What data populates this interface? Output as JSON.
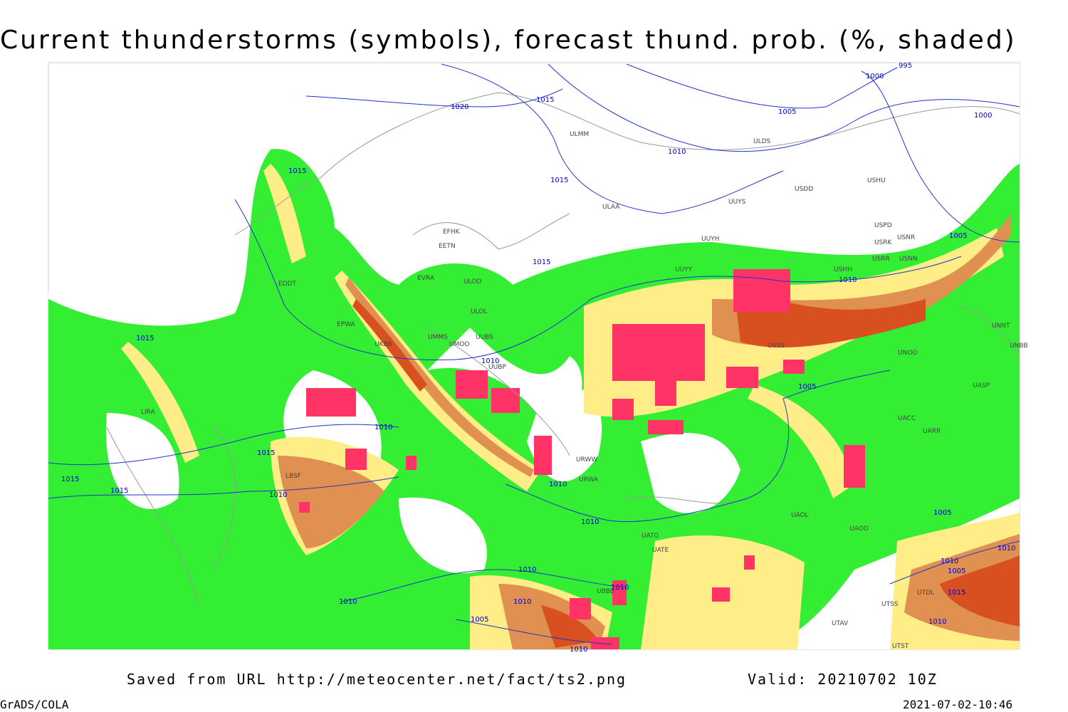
{
  "title": "Current thunderstorms (symbols), forecast thund. prob. (%, shaded)",
  "map": {
    "isobar_labels": [
      "1020",
      "1015",
      "1015",
      "1015",
      "1010",
      "1005",
      "995",
      "1000",
      "1000",
      "1005",
      "1015",
      "1010",
      "1015",
      "1010",
      "1005",
      "1010",
      "1015",
      "1015",
      "1015",
      "1010",
      "1010",
      "1010",
      "1005",
      "1010",
      "1010",
      "1010",
      "1010",
      "1005",
      "1010",
      "1010",
      "1005",
      "1015",
      "1010",
      "1010"
    ],
    "station_labels": [
      "ULMM",
      "ULAA",
      "UUYS",
      "USDD",
      "USHU",
      "ULDS",
      "EFHK",
      "EETN",
      "EVRA",
      "ULOD",
      "ULOL",
      "EDDT",
      "EPWA",
      "UMMS",
      "UMOO",
      "UUBS",
      "UUBP",
      "UKBB",
      "USPD",
      "USRK",
      "USNR",
      "USRR",
      "USNN",
      "USHH",
      "UUYY",
      "UUYH",
      "USSS",
      "UNOO",
      "UNNT",
      "UNBB",
      "UASP",
      "UACC",
      "UARR",
      "UAOO",
      "UAOL",
      "UTDL",
      "UTSS",
      "UTAV",
      "UTST",
      "UATE",
      "UATG",
      "UBBB",
      "URWW",
      "URWA",
      "LIRA",
      "LBSF"
    ]
  },
  "footer": {
    "source": "Saved from URL http://meteocenter.net/fact/ts2.png",
    "valid": "Valid: 20210702 10Z",
    "software": "GrADS/COLA",
    "timestamp": "2021-07-02-10:46"
  }
}
